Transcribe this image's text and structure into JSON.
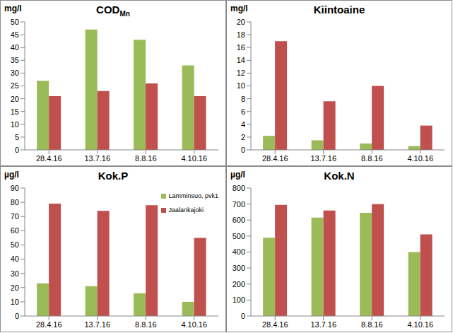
{
  "chart_data": [
    {
      "type": "bar",
      "title": "COD",
      "title_subscript": "Mn",
      "ylabel": "mg/l",
      "categories": [
        "28.4.16",
        "13.7.16",
        "8.8.16",
        "4.10.16"
      ],
      "series": [
        {
          "name": "Lamminsuo, pvk1",
          "color": "#9bbb59",
          "values": [
            27,
            47,
            43,
            33
          ]
        },
        {
          "name": "Jaalankajoki",
          "color": "#c0504d",
          "values": [
            21,
            23,
            26,
            21
          ]
        }
      ],
      "ylim": [
        0,
        50
      ],
      "yticks": [
        0,
        5,
        10,
        15,
        20,
        25,
        30,
        35,
        40,
        45,
        50
      ],
      "grid": false
    },
    {
      "type": "bar",
      "title": "Kiintoaine",
      "ylabel": "mg/l",
      "categories": [
        "28.4.16",
        "13.7.16",
        "8.8.16",
        "4.10.16"
      ],
      "series": [
        {
          "name": "Lamminsuo, pvk1",
          "color": "#9bbb59",
          "values": [
            2.2,
            1.5,
            1.0,
            0.6
          ]
        },
        {
          "name": "Jaalankajoki",
          "color": "#c0504d",
          "values": [
            17,
            7.6,
            10,
            3.8
          ]
        }
      ],
      "ylim": [
        0,
        20
      ],
      "yticks": [
        0,
        2,
        4,
        6,
        8,
        10,
        12,
        14,
        16,
        18,
        20
      ],
      "grid": false
    },
    {
      "type": "bar",
      "title": "Kok.P",
      "ylabel": "µg/l",
      "categories": [
        "28.4.16",
        "13.7.16",
        "8.8.16",
        "4.10.16"
      ],
      "series": [
        {
          "name": "Lamminsuo, pvk1",
          "color": "#9bbb59",
          "values": [
            23,
            21,
            16,
            10
          ]
        },
        {
          "name": "Jaalankajoki",
          "color": "#c0504d",
          "values": [
            79,
            74,
            78,
            55
          ]
        }
      ],
      "ylim": [
        0,
        90
      ],
      "yticks": [
        0,
        10,
        20,
        30,
        40,
        50,
        60,
        70,
        80,
        90
      ],
      "grid": false,
      "legend": "upper right"
    },
    {
      "type": "bar",
      "title": "Kok.N",
      "ylabel": "µg/l",
      "categories": [
        "28.4.16",
        "13.7.16",
        "8.8.16",
        "4.10.16"
      ],
      "series": [
        {
          "name": "Lamminsuo, pvk1",
          "color": "#9bbb59",
          "values": [
            490,
            615,
            645,
            400
          ]
        },
        {
          "name": "Jaalankajoki",
          "color": "#c0504d",
          "values": [
            695,
            660,
            700,
            510
          ]
        }
      ],
      "ylim": [
        0,
        800
      ],
      "yticks": [
        0,
        100,
        200,
        300,
        400,
        500,
        600,
        700,
        800
      ],
      "grid": false
    }
  ]
}
